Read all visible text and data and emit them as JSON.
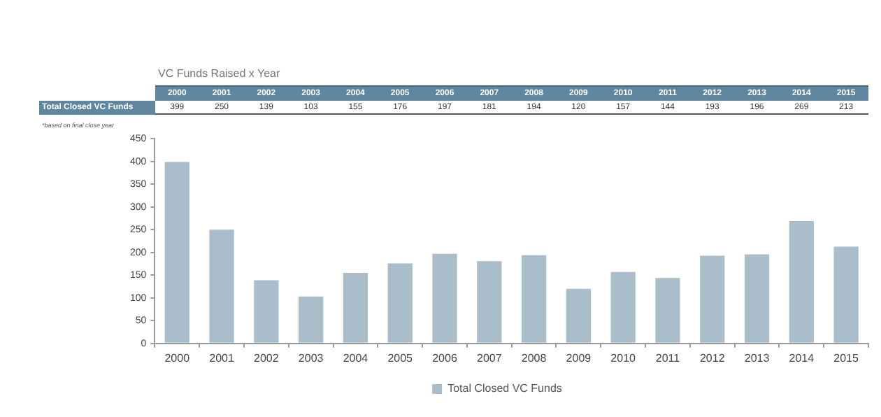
{
  "chart_data": {
    "type": "bar",
    "title": "VC Funds Raised x Year",
    "categories": [
      "2000",
      "2001",
      "2002",
      "2003",
      "2004",
      "2005",
      "2006",
      "2007",
      "2008",
      "2009",
      "2010",
      "2011",
      "2012",
      "2013",
      "2014",
      "2015"
    ],
    "series": [
      {
        "name": "Total Closed VC Funds",
        "color": "#aabdca",
        "values": [
          399,
          250,
          139,
          103,
          155,
          176,
          197,
          181,
          194,
          120,
          157,
          144,
          193,
          196,
          269,
          213
        ]
      }
    ],
    "ylim": [
      0,
      450
    ],
    "yticks": [
      0,
      50,
      100,
      150,
      200,
      250,
      300,
      350,
      400,
      450
    ],
    "grid": false,
    "legend": "bottom",
    "data_labels": true,
    "annotations": [
      "*based on final close year"
    ]
  }
}
